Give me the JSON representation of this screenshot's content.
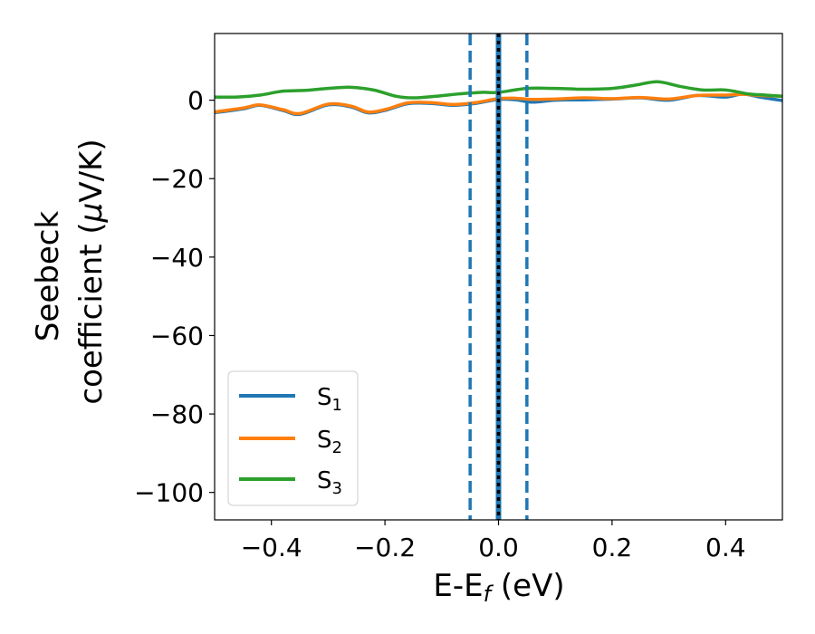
{
  "chart_data": {
    "type": "line",
    "title": "",
    "xlabel": "E-E",
    "xlabel_sub": "f",
    "xlabel_unit": " (eV)",
    "ylabel_line1": "Seebeck",
    "ylabel_line2_prefix": "coefficient  (",
    "ylabel_mu": "μ",
    "ylabel_line2_suffix": "V/K)",
    "xlim": [
      -0.5,
      0.5
    ],
    "ylim": [
      -107,
      17
    ],
    "xticks": [
      -0.4,
      -0.2,
      0.0,
      0.2,
      0.4
    ],
    "xtick_labels": [
      "−0.4",
      "−0.2",
      "0.0",
      "0.2",
      "0.4"
    ],
    "yticks": [
      0,
      -20,
      -40,
      -60,
      -80,
      -100
    ],
    "ytick_labels": [
      "0",
      "−20",
      "−40",
      "−60",
      "−80",
      "−100"
    ],
    "legend_position": "lower-left",
    "series": [
      {
        "name": "S",
        "sub": "1",
        "color": "#1f77b4",
        "x": [
          -0.5,
          -0.45,
          -0.42,
          -0.38,
          -0.35,
          -0.3,
          -0.26,
          -0.23,
          -0.2,
          -0.16,
          -0.12,
          -0.08,
          -0.04,
          0.0,
          0.03,
          0.06,
          0.1,
          0.15,
          0.2,
          0.25,
          0.3,
          0.35,
          0.4,
          0.43,
          0.46,
          0.5
        ],
        "y": [
          -3.2,
          -2.2,
          -1.3,
          -2.6,
          -3.6,
          -1.2,
          -1.7,
          -3.2,
          -2.6,
          -0.9,
          -0.8,
          -1.3,
          -0.8,
          0.2,
          0.1,
          -0.5,
          0.0,
          0.1,
          0.3,
          0.6,
          0.0,
          1.2,
          0.8,
          1.6,
          0.8,
          -0.1
        ]
      },
      {
        "name": "S",
        "sub": "2",
        "color": "#ff7f0e",
        "x": [
          -0.5,
          -0.45,
          -0.42,
          -0.38,
          -0.35,
          -0.3,
          -0.26,
          -0.23,
          -0.2,
          -0.16,
          -0.12,
          -0.08,
          -0.04,
          0.0,
          0.03,
          0.06,
          0.1,
          0.15,
          0.2,
          0.25,
          0.3,
          0.35,
          0.4,
          0.43,
          0.46,
          0.5
        ],
        "y": [
          -3.0,
          -2.0,
          -1.2,
          -2.4,
          -3.4,
          -1.0,
          -1.5,
          -3.0,
          -2.4,
          -0.7,
          -0.6,
          -1.1,
          -0.6,
          0.4,
          0.5,
          0.2,
          0.3,
          0.6,
          0.4,
          0.7,
          0.3,
          1.2,
          1.3,
          1.5,
          1.2,
          1.0
        ]
      },
      {
        "name": "S",
        "sub": "3",
        "color": "#2ca02c",
        "x": [
          -0.5,
          -0.46,
          -0.42,
          -0.38,
          -0.34,
          -0.3,
          -0.26,
          -0.22,
          -0.18,
          -0.15,
          -0.11,
          -0.07,
          -0.03,
          0.0,
          0.05,
          0.1,
          0.15,
          0.2,
          0.24,
          0.28,
          0.32,
          0.36,
          0.4,
          0.44,
          0.47,
          0.5
        ],
        "y": [
          0.8,
          0.8,
          1.3,
          2.3,
          2.5,
          3.0,
          3.3,
          2.6,
          1.0,
          0.6,
          1.0,
          1.6,
          2.0,
          2.0,
          3.0,
          3.0,
          2.8,
          3.0,
          3.8,
          4.7,
          3.5,
          2.6,
          2.6,
          1.6,
          1.3,
          1.0
        ]
      }
    ],
    "vlines": [
      {
        "x": -0.05,
        "style": "dashed",
        "color": "#1f77b4"
      },
      {
        "x": 0.05,
        "style": "dashed",
        "color": "#1f77b4"
      },
      {
        "x": 0.0,
        "style": "solid",
        "color": "#1f77b4"
      },
      {
        "x": 0.0,
        "style": "dotted",
        "color": "#000000"
      }
    ]
  }
}
